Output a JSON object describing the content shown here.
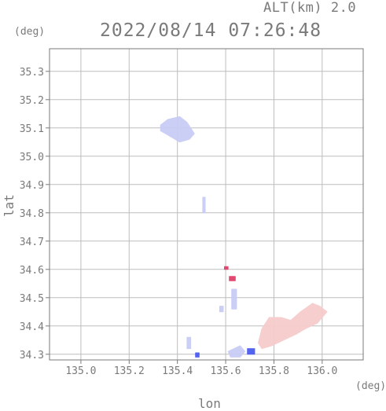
{
  "chart_data": {
    "type": "heatmap",
    "title": "2022/08/14 07:26:48",
    "subtitle": "ALT(km) 2.0",
    "xlabel": "lon",
    "ylabel": "lat",
    "x_unit": "(deg)",
    "y_unit": "(deg)",
    "xlim": [
      134.87,
      136.17
    ],
    "ylim": [
      34.28,
      35.38
    ],
    "x_ticks": [
      135.0,
      135.2,
      135.4,
      135.6,
      135.8,
      136.0
    ],
    "x_tick_labels": [
      "135.0",
      "135.2",
      "135.4",
      "135.6",
      "135.8",
      "136.0"
    ],
    "y_ticks": [
      34.3,
      34.4,
      34.5,
      34.6,
      34.7,
      34.8,
      34.9,
      35.0,
      35.1,
      35.2,
      35.3
    ],
    "y_tick_labels": [
      "34.3",
      "34.4",
      "34.5",
      "34.6",
      "34.7",
      "34.8",
      "34.9",
      "35.0",
      "35.1",
      "35.2",
      "35.3"
    ],
    "grid": true,
    "colors": {
      "axis": "#7a7a7a",
      "grid": "#bdbdbd",
      "negative": "#c9ccf5",
      "positive": "#f6cccc",
      "strong_negative": "#4a5cf0",
      "strong_positive": "#e0406a"
    },
    "regions": [
      {
        "sign": "negative",
        "intensity": "weak",
        "points": [
          [
            135.33,
            35.11
          ],
          [
            135.36,
            35.13
          ],
          [
            135.41,
            35.14
          ],
          [
            135.44,
            35.12
          ],
          [
            135.47,
            35.08
          ],
          [
            135.45,
            35.06
          ],
          [
            135.41,
            35.05
          ],
          [
            135.37,
            35.07
          ],
          [
            135.33,
            35.09
          ]
        ]
      },
      {
        "sign": "negative",
        "intensity": "weak",
        "points": [
          [
            135.505,
            34.855
          ],
          [
            135.515,
            34.855
          ],
          [
            135.515,
            34.8
          ],
          [
            135.505,
            34.8
          ]
        ]
      },
      {
        "sign": "positive",
        "intensity": "strong",
        "points": [
          [
            135.595,
            34.61
          ],
          [
            135.61,
            34.61
          ],
          [
            135.61,
            34.6
          ],
          [
            135.595,
            34.6
          ]
        ]
      },
      {
        "sign": "positive",
        "intensity": "strong",
        "points": [
          [
            135.615,
            34.575
          ],
          [
            135.64,
            34.575
          ],
          [
            135.64,
            34.56
          ],
          [
            135.615,
            34.56
          ]
        ]
      },
      {
        "sign": "negative",
        "intensity": "weak",
        "points": [
          [
            135.625,
            34.53
          ],
          [
            135.645,
            34.53
          ],
          [
            135.645,
            34.46
          ],
          [
            135.625,
            34.46
          ]
        ]
      },
      {
        "sign": "negative",
        "intensity": "weak",
        "points": [
          [
            135.575,
            34.47
          ],
          [
            135.59,
            34.47
          ],
          [
            135.59,
            34.45
          ],
          [
            135.575,
            34.45
          ]
        ]
      },
      {
        "sign": "negative",
        "intensity": "weak",
        "points": [
          [
            135.44,
            34.36
          ],
          [
            135.455,
            34.36
          ],
          [
            135.455,
            34.32
          ],
          [
            135.44,
            34.32
          ]
        ]
      },
      {
        "sign": "negative",
        "intensity": "strong",
        "points": [
          [
            135.475,
            34.305
          ],
          [
            135.49,
            34.305
          ],
          [
            135.49,
            34.29
          ],
          [
            135.475,
            34.29
          ]
        ]
      },
      {
        "sign": "negative",
        "intensity": "weak",
        "points": [
          [
            135.61,
            34.31
          ],
          [
            135.66,
            34.33
          ],
          [
            135.68,
            34.31
          ],
          [
            135.66,
            34.29
          ],
          [
            135.62,
            34.29
          ]
        ]
      },
      {
        "sign": "negative",
        "intensity": "strong",
        "points": [
          [
            135.69,
            34.32
          ],
          [
            135.72,
            34.32
          ],
          [
            135.72,
            34.3
          ],
          [
            135.69,
            34.3
          ]
        ]
      },
      {
        "sign": "positive",
        "intensity": "weak",
        "points": [
          [
            135.735,
            34.34
          ],
          [
            135.75,
            34.39
          ],
          [
            135.78,
            34.43
          ],
          [
            135.83,
            34.43
          ],
          [
            135.87,
            34.42
          ],
          [
            135.91,
            34.45
          ],
          [
            135.96,
            34.48
          ],
          [
            135.99,
            34.47
          ],
          [
            136.02,
            34.45
          ],
          [
            135.98,
            34.41
          ],
          [
            135.93,
            34.39
          ],
          [
            135.89,
            34.37
          ],
          [
            135.84,
            34.35
          ],
          [
            135.79,
            34.33
          ],
          [
            135.75,
            34.32
          ]
        ]
      }
    ]
  }
}
